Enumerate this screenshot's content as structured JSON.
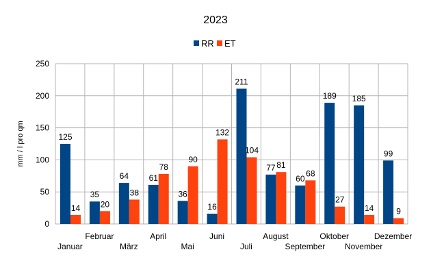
{
  "chart_data": {
    "type": "bar",
    "title": "2023",
    "ylabel": "mm / l pro qm",
    "xlabel": "",
    "ylim": [
      0,
      250
    ],
    "yticks": [
      0,
      50,
      100,
      150,
      200,
      250
    ],
    "grid": true,
    "legend_position": "top",
    "categories": [
      "Januar",
      "Februar",
      "März",
      "April",
      "Mai",
      "Juni",
      "Juli",
      "August",
      "September",
      "Oktober",
      "November",
      "Dezember"
    ],
    "series": [
      {
        "name": "RR",
        "color": "#004586",
        "values": [
          125,
          35,
          64,
          61,
          36,
          16,
          211,
          77,
          60,
          189,
          185,
          99
        ]
      },
      {
        "name": "ET",
        "color": "#ff420e",
        "values": [
          14,
          20,
          38,
          78,
          90,
          132,
          104,
          81,
          68,
          27,
          14,
          9
        ]
      }
    ]
  }
}
